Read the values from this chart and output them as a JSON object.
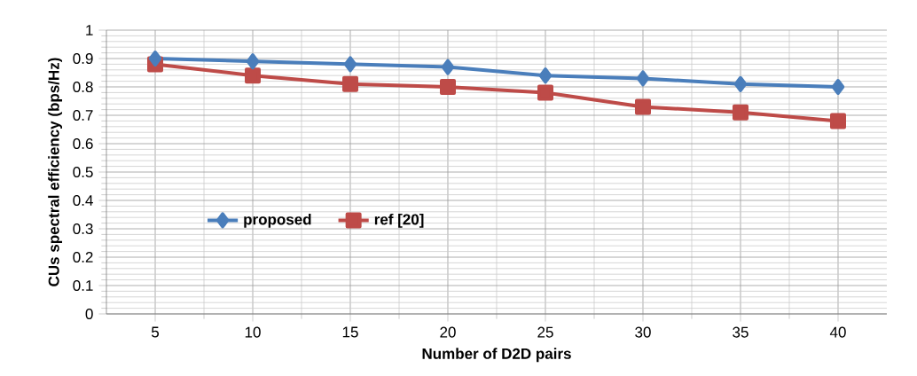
{
  "chart_data": {
    "type": "line",
    "xlabel": "Number of D2D pairs",
    "ylabel": "CUs spectral efficiency  (bps/Hz)",
    "categories": [
      "5",
      "10",
      "15",
      "20",
      "25",
      "30",
      "35",
      "40"
    ],
    "series": [
      {
        "name": "proposed",
        "color": "#4a7ebb",
        "marker": "diamond",
        "values": [
          0.9,
          0.89,
          0.88,
          0.87,
          0.84,
          0.83,
          0.81,
          0.8
        ]
      },
      {
        "name": "ref [20]",
        "color": "#be4b48",
        "marker": "square",
        "values": [
          0.88,
          0.84,
          0.81,
          0.8,
          0.78,
          0.73,
          0.71,
          0.68
        ]
      }
    ],
    "ylim": [
      0,
      1
    ],
    "yticks": [
      0,
      0.1,
      0.2,
      0.3,
      0.4,
      0.5,
      0.6,
      0.7,
      0.8,
      0.9,
      1
    ],
    "grid": true,
    "legend": "left",
    "line_style": "solid"
  }
}
